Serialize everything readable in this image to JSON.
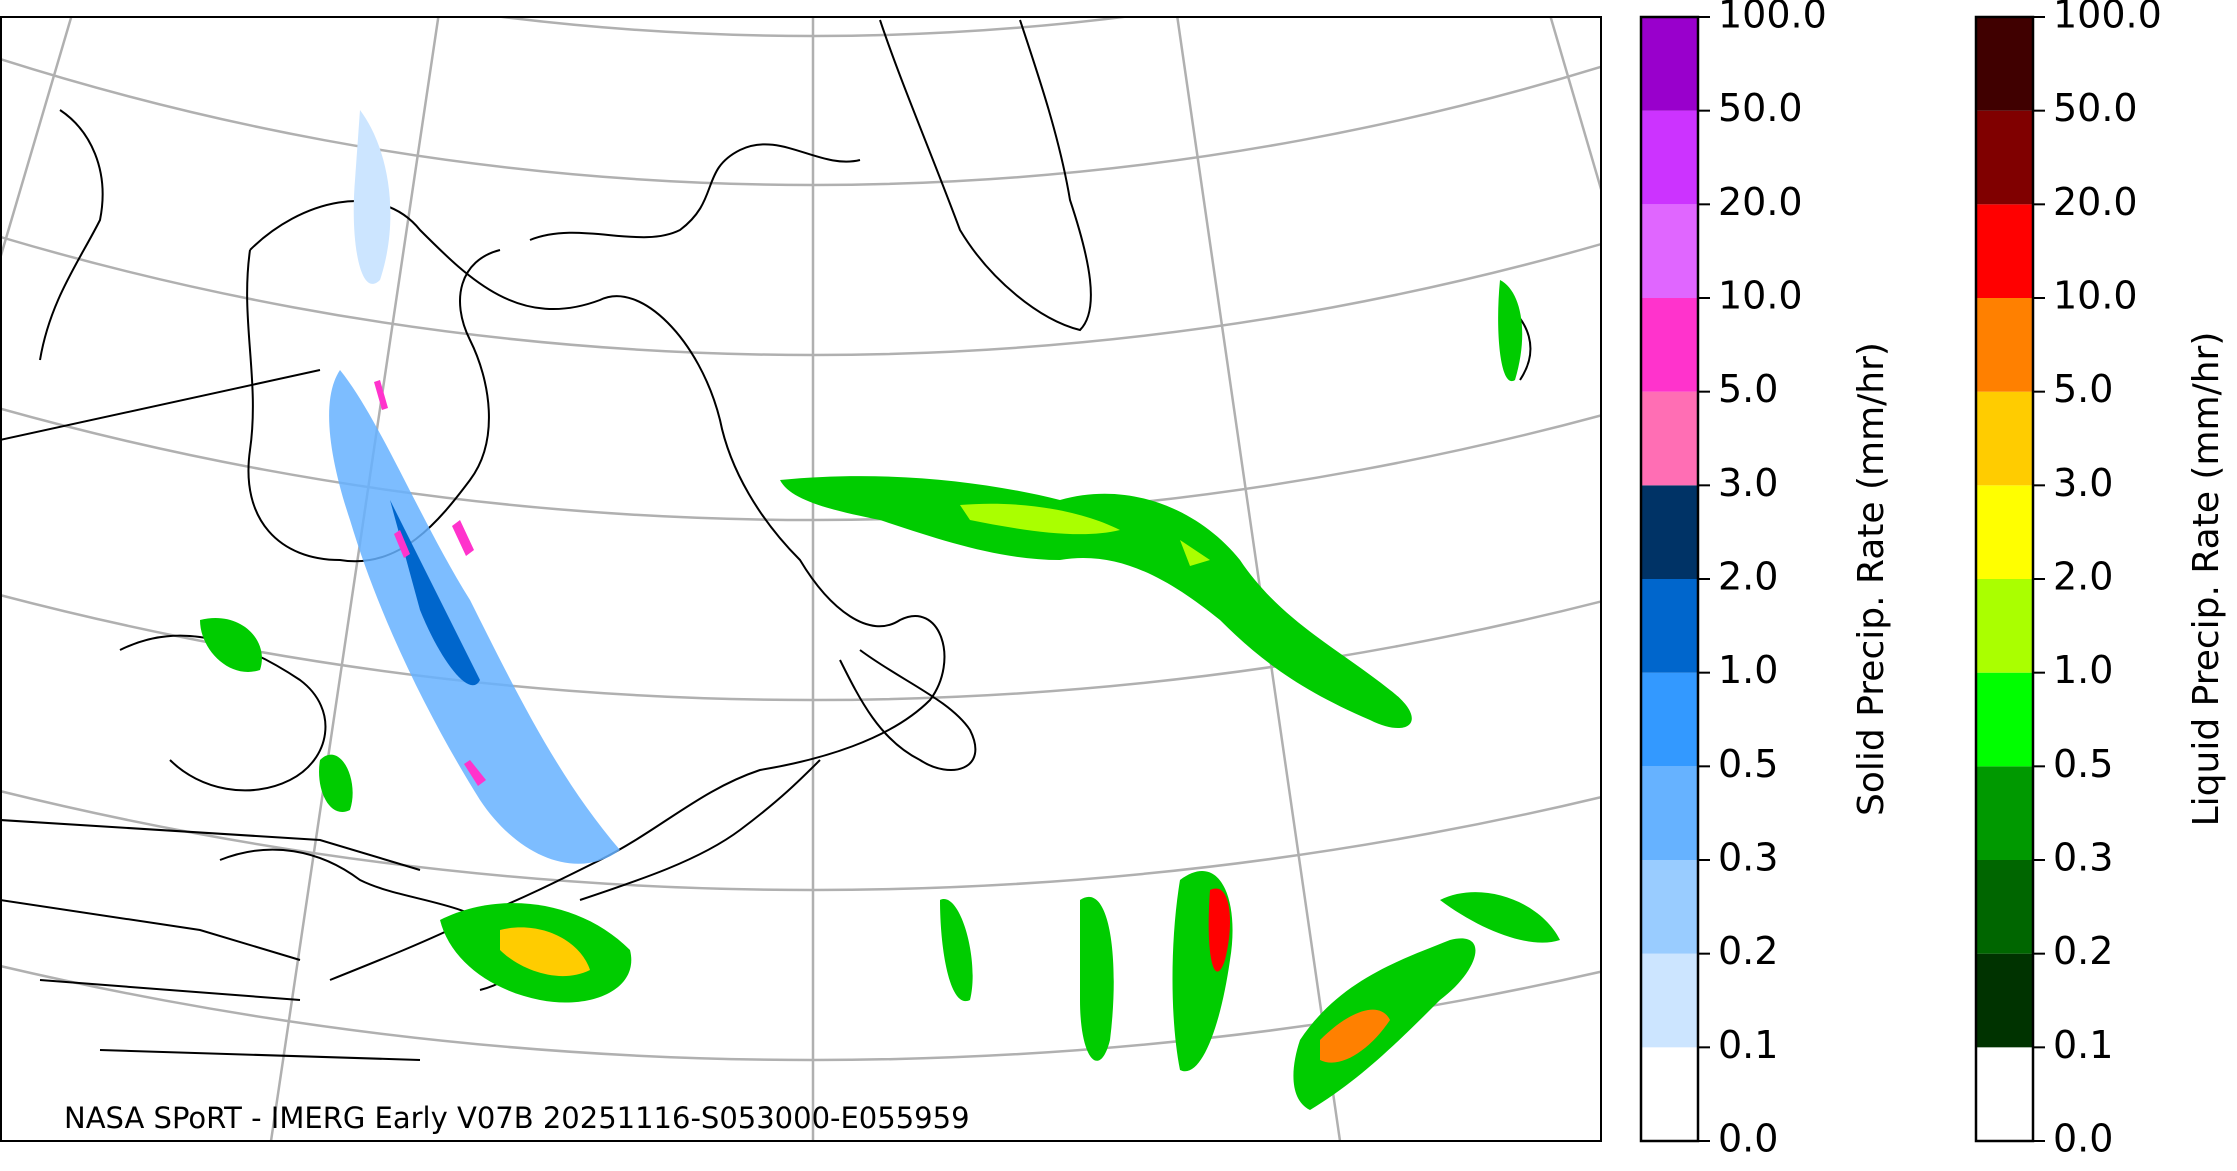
{
  "map": {
    "caption": "NASA SPoRT - IMERG Early V07B 20251116-S053000-E055959"
  },
  "colorbars": [
    {
      "label": "Solid Precip. Rate (mm/hr)",
      "ticks": [
        {
          "value": 0,
          "label": "0.0"
        },
        {
          "value": 0.1,
          "label": "0.1"
        },
        {
          "value": 0.2,
          "label": "0.2"
        },
        {
          "value": 0.3,
          "label": "0.3"
        },
        {
          "value": 0.5,
          "label": "0.5"
        },
        {
          "value": 1,
          "label": "1.0"
        },
        {
          "value": 2,
          "label": "2.0"
        },
        {
          "value": 3,
          "label": "3.0"
        },
        {
          "value": 5,
          "label": "5.0"
        },
        {
          "value": 10,
          "label": "10.0"
        },
        {
          "value": 20,
          "label": "20.0"
        },
        {
          "value": 50,
          "label": "50.0"
        },
        {
          "value": 100,
          "label": "100.0"
        }
      ],
      "colors": [
        "#ffffff",
        "#cce5ff",
        "#99ccff",
        "#66b2ff",
        "#3399ff",
        "#0066cc",
        "#003366",
        "#ff6eb4",
        "#ff33cc",
        "#e066ff",
        "#cc33ff",
        "#9900cc"
      ]
    },
    {
      "label": "Liquid Precip. Rate (mm/hr)",
      "ticks": [
        {
          "value": 0,
          "label": "0.0"
        },
        {
          "value": 0.1,
          "label": "0.1"
        },
        {
          "value": 0.2,
          "label": "0.2"
        },
        {
          "value": 0.3,
          "label": "0.3"
        },
        {
          "value": 0.5,
          "label": "0.5"
        },
        {
          "value": 1,
          "label": "1.0"
        },
        {
          "value": 2,
          "label": "2.0"
        },
        {
          "value": 3,
          "label": "3.0"
        },
        {
          "value": 5,
          "label": "5.0"
        },
        {
          "value": 10,
          "label": "10.0"
        },
        {
          "value": 20,
          "label": "20.0"
        },
        {
          "value": 50,
          "label": "50.0"
        },
        {
          "value": 100,
          "label": "100.0"
        }
      ],
      "colors": [
        "#ffffff",
        "#003300",
        "#006600",
        "#009900",
        "#00ff00",
        "#aaff00",
        "#ffff00",
        "#ffcc00",
        "#ff8000",
        "#ff0000",
        "#800000",
        "#400000"
      ]
    }
  ]
}
